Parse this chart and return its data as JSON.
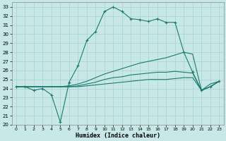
{
  "xlabel": "Humidex (Indice chaleur)",
  "xlim": [
    -0.5,
    23.5
  ],
  "ylim": [
    20,
    33.5
  ],
  "yticks": [
    20,
    21,
    22,
    23,
    24,
    25,
    26,
    27,
    28,
    29,
    30,
    31,
    32,
    33
  ],
  "xticks": [
    0,
    1,
    2,
    3,
    4,
    5,
    6,
    7,
    8,
    9,
    10,
    11,
    12,
    13,
    14,
    15,
    16,
    17,
    18,
    19,
    20,
    21,
    22,
    23
  ],
  "background_color": "#c8e8e8",
  "grid_color": "#aed4d4",
  "line_color": "#1a7a6e",
  "series": [
    {
      "x": [
        0,
        1,
        2,
        3,
        4,
        5,
        6,
        7,
        8,
        9,
        10,
        11,
        12,
        13,
        14,
        15,
        16,
        17,
        18,
        19,
        20,
        21,
        22,
        23
      ],
      "y": [
        24.2,
        24.2,
        23.8,
        24.0,
        23.3,
        20.3,
        24.7,
        26.5,
        29.3,
        30.3,
        32.5,
        33.0,
        32.5,
        31.7,
        31.6,
        31.4,
        31.7,
        31.3,
        31.3,
        28.0,
        25.8,
        23.8,
        24.2,
        24.8
      ],
      "marker": "+"
    },
    {
      "x": [
        0,
        2,
        3,
        4,
        5,
        6,
        7,
        8,
        9,
        10,
        11,
        12,
        13,
        14,
        15,
        16,
        17,
        18,
        19,
        20,
        21,
        22,
        23
      ],
      "y": [
        24.2,
        24.2,
        24.2,
        24.2,
        24.2,
        24.3,
        24.5,
        24.8,
        25.2,
        25.6,
        25.9,
        26.2,
        26.5,
        26.8,
        27.0,
        27.2,
        27.4,
        27.7,
        28.0,
        27.8,
        23.8,
        24.5,
        24.8
      ],
      "marker": null
    },
    {
      "x": [
        0,
        2,
        3,
        4,
        5,
        6,
        7,
        8,
        9,
        10,
        11,
        12,
        13,
        14,
        15,
        16,
        17,
        18,
        19,
        20,
        21,
        22,
        23
      ],
      "y": [
        24.2,
        24.2,
        24.2,
        24.2,
        24.2,
        24.2,
        24.3,
        24.5,
        24.7,
        25.0,
        25.2,
        25.3,
        25.5,
        25.6,
        25.7,
        25.8,
        25.8,
        25.9,
        25.8,
        25.7,
        23.8,
        24.2,
        24.8
      ],
      "marker": null
    },
    {
      "x": [
        0,
        2,
        3,
        4,
        5,
        6,
        7,
        8,
        9,
        10,
        11,
        12,
        13,
        14,
        15,
        16,
        17,
        18,
        19,
        20,
        21,
        22,
        23
      ],
      "y": [
        24.2,
        24.2,
        24.2,
        24.2,
        24.2,
        24.2,
        24.2,
        24.3,
        24.4,
        24.5,
        24.6,
        24.7,
        24.8,
        24.9,
        25.0,
        25.0,
        25.0,
        25.1,
        25.2,
        25.2,
        23.8,
        24.2,
        24.8
      ],
      "marker": null
    }
  ]
}
